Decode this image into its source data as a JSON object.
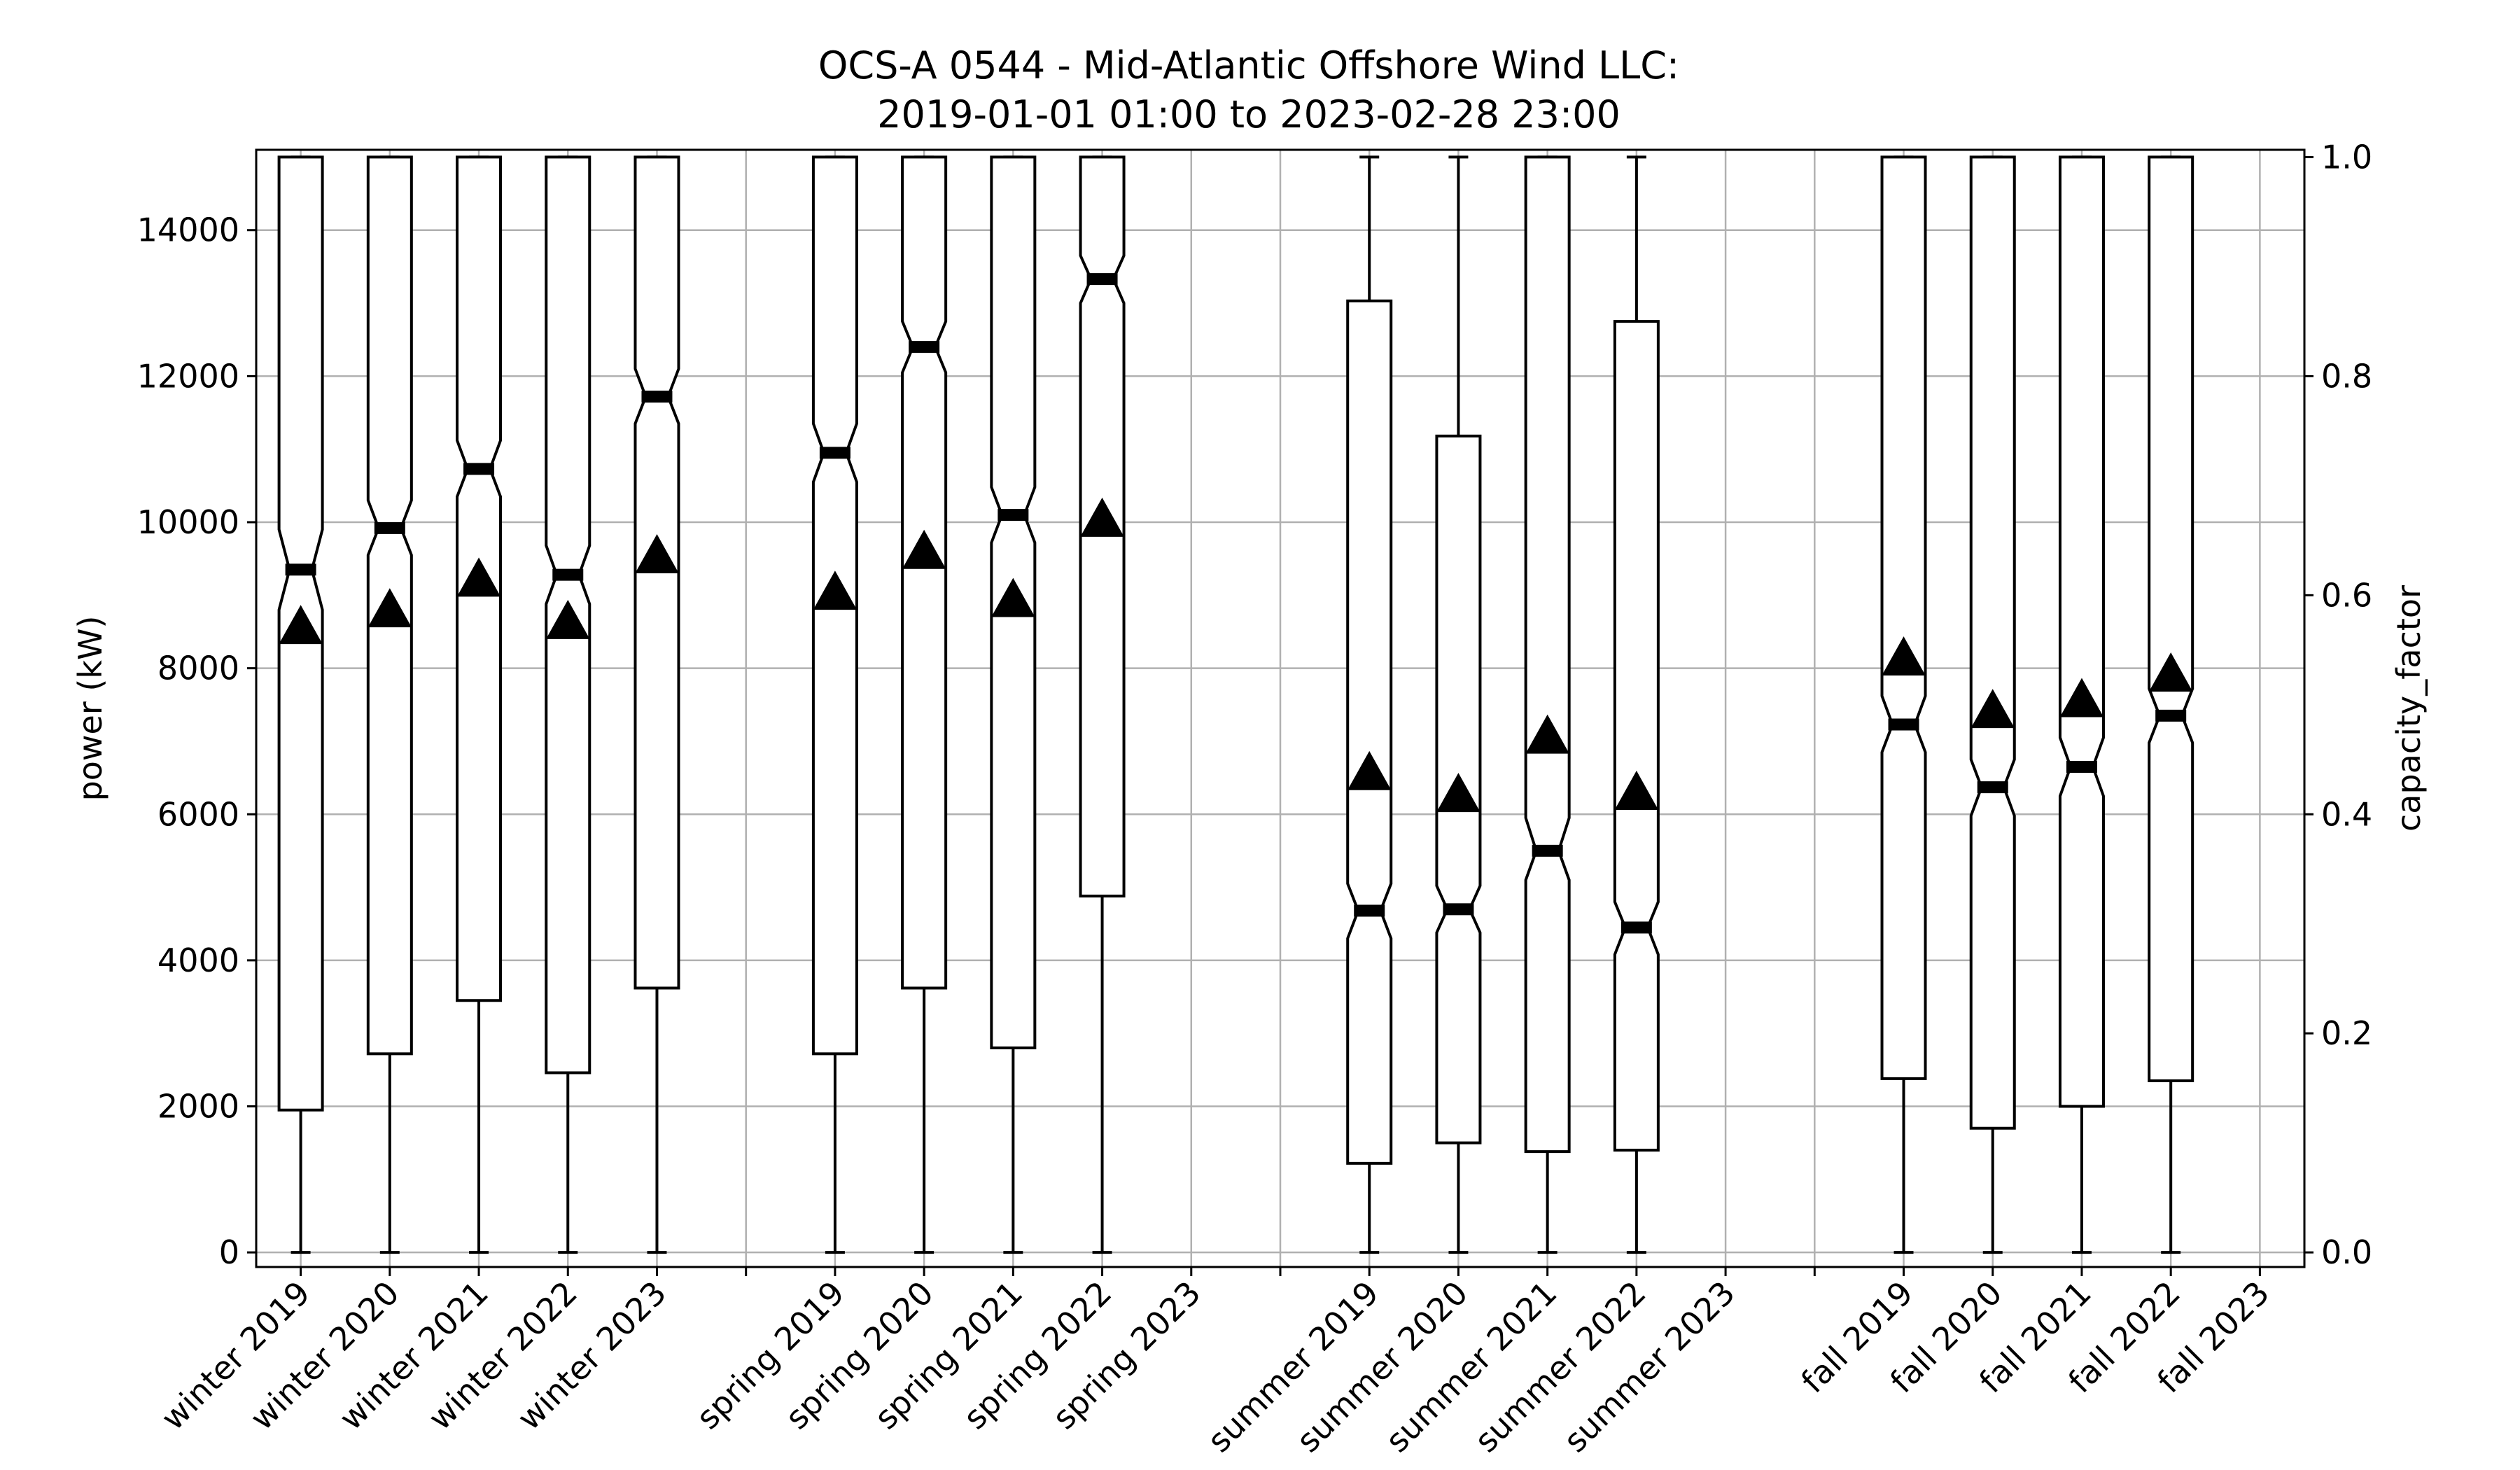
{
  "chart_data": {
    "type": "box",
    "title": "OCS-A 0544 - Mid-Atlantic Offshore Wind LLC:",
    "subtitle": "2019-01-01 01:00 to 2023-02-28 23:00",
    "ylabel": "power (kW)",
    "y2label": "capacity_factor",
    "ylim": [
      -200,
      15100
    ],
    "y2lim": [
      -0.01333,
      1.00667
    ],
    "yticks": [
      "0",
      "2000",
      "4000",
      "6000",
      "8000",
      "10000",
      "12000",
      "14000"
    ],
    "y2ticks": [
      "0.0",
      "0.2",
      "0.4",
      "0.6",
      "0.8",
      "1.0"
    ],
    "grid": true,
    "notched": true,
    "categories": [
      "winter 2019",
      "winter 2020",
      "winter 2021",
      "winter 2022",
      "winter 2023",
      "spring 2019",
      "spring 2020",
      "spring 2021",
      "spring 2022",
      "spring 2023",
      "summer 2019",
      "summer 2020",
      "summer 2021",
      "summer 2022",
      "summer 2023",
      "fall 2019",
      "fall 2020",
      "fall 2021",
      "fall 2022",
      "fall 2023"
    ],
    "positions": [
      1,
      2,
      3,
      4,
      5,
      7,
      8,
      9,
      10,
      11,
      13,
      14,
      15,
      16,
      17,
      19,
      20,
      21,
      22,
      23
    ],
    "boxes": [
      {
        "category": "winter 2019",
        "min": 0,
        "q1": 1950,
        "median": 9350,
        "q3": 15000,
        "max": 15000,
        "mean": 8550,
        "notch": [
          8800,
          9900
        ]
      },
      {
        "category": "winter 2020",
        "min": 0,
        "q1": 2720,
        "median": 9920,
        "q3": 15000,
        "max": 15000,
        "mean": 8780,
        "notch": [
          9550,
          10300
        ]
      },
      {
        "category": "winter 2021",
        "min": 0,
        "q1": 3450,
        "median": 10730,
        "q3": 15000,
        "max": 15000,
        "mean": 9200,
        "notch": [
          10350,
          11120
        ]
      },
      {
        "category": "winter 2022",
        "min": 0,
        "q1": 2460,
        "median": 9280,
        "q3": 15000,
        "max": 15000,
        "mean": 8620,
        "notch": [
          8880,
          9680
        ]
      },
      {
        "category": "winter 2023",
        "min": 0,
        "q1": 3620,
        "median": 11720,
        "q3": 15000,
        "max": 15000,
        "mean": 9520,
        "notch": [
          11350,
          12100
        ]
      },
      {
        "category": "spring 2019",
        "min": 0,
        "q1": 2720,
        "median": 10950,
        "q3": 15000,
        "max": 15000,
        "mean": 9020,
        "notch": [
          10550,
          11350
        ]
      },
      {
        "category": "spring 2020",
        "min": 0,
        "q1": 3620,
        "median": 12400,
        "q3": 15000,
        "max": 15000,
        "mean": 9580,
        "notch": [
          12050,
          12750
        ]
      },
      {
        "category": "spring 2021",
        "min": 0,
        "q1": 2800,
        "median": 10100,
        "q3": 15000,
        "max": 15000,
        "mean": 8920,
        "notch": [
          9720,
          10480
        ]
      },
      {
        "category": "spring 2022",
        "min": 0,
        "q1": 4880,
        "median": 13330,
        "q3": 15000,
        "max": 15000,
        "mean": 10020,
        "notch": [
          13000,
          13650
        ]
      },
      {
        "category": "summer 2019",
        "min": 0,
        "q1": 1220,
        "median": 4680,
        "q3": 13030,
        "max": 15000,
        "mean": 6550,
        "notch": [
          4300,
          5050
        ]
      },
      {
        "category": "summer 2020",
        "min": 0,
        "q1": 1500,
        "median": 4700,
        "q3": 11180,
        "max": 15000,
        "mean": 6250,
        "notch": [
          4380,
          5020
        ]
      },
      {
        "category": "summer 2021",
        "min": 0,
        "q1": 1380,
        "median": 5500,
        "q3": 15000,
        "max": 15000,
        "mean": 7050,
        "notch": [
          5100,
          5950
        ]
      },
      {
        "category": "summer 2022",
        "min": 0,
        "q1": 1400,
        "median": 4450,
        "q3": 12750,
        "max": 15000,
        "mean": 6280,
        "notch": [
          4080,
          4800
        ]
      },
      {
        "category": "fall 2019",
        "min": 0,
        "q1": 2380,
        "median": 7230,
        "q3": 15000,
        "max": 15000,
        "mean": 8120,
        "notch": [
          6850,
          7620
        ]
      },
      {
        "category": "fall 2020",
        "min": 0,
        "q1": 1700,
        "median": 6370,
        "q3": 15000,
        "max": 15000,
        "mean": 7400,
        "notch": [
          5980,
          6750
        ]
      },
      {
        "category": "fall 2021",
        "min": 0,
        "q1": 2000,
        "median": 6650,
        "q3": 15000,
        "max": 15000,
        "mean": 7550,
        "notch": [
          6250,
          7050
        ]
      },
      {
        "category": "fall 2022",
        "min": 0,
        "q1": 2350,
        "median": 7350,
        "q3": 15000,
        "max": 15000,
        "mean": 7900,
        "notch": [
          6980,
          7720
        ]
      }
    ]
  }
}
